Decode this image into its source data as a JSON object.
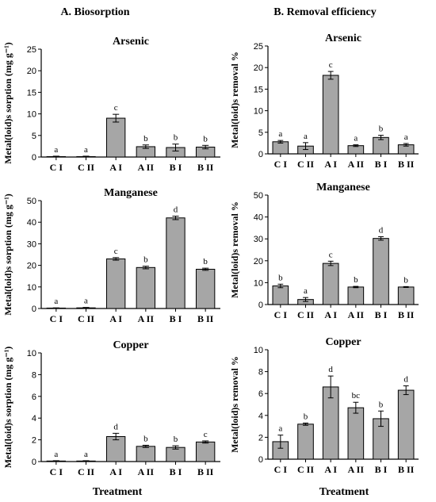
{
  "column_titles": [
    "A. Biosorption",
    "B. Removal efficiency"
  ],
  "x_axis_label": "Treatment",
  "style": {
    "bar_fill": "#a6a6a6",
    "bar_stroke": "#000000",
    "axis_color": "#000000"
  },
  "chart_data": [
    {
      "type": "bar",
      "column": 0,
      "row": 0,
      "title": "Arsenic",
      "ylabel": "Metal(loid)s sorption (mg g⁻¹)",
      "ylim": [
        0,
        25
      ],
      "yticks": [
        0,
        5,
        10,
        15,
        20,
        25
      ],
      "categories": [
        "C I",
        "C II",
        "A I",
        "A II",
        "B I",
        "B II"
      ],
      "values": [
        0.1,
        0.1,
        9.0,
        2.4,
        2.2,
        2.3
      ],
      "errors": [
        0.1,
        0.1,
        0.9,
        0.4,
        0.8,
        0.4
      ],
      "letters": [
        "a",
        "a",
        "c",
        "b",
        "b",
        "b"
      ]
    },
    {
      "type": "bar",
      "column": 1,
      "row": 0,
      "title": "Arsenic",
      "ylabel": "Metal(loid)s removal %",
      "ylim": [
        0,
        25
      ],
      "yticks": [
        0,
        5,
        10,
        15,
        20,
        25
      ],
      "categories": [
        "C I",
        "C II",
        "A I",
        "A II",
        "B I",
        "B II"
      ],
      "values": [
        2.8,
        1.8,
        18.2,
        1.9,
        3.8,
        2.1
      ],
      "errors": [
        0.3,
        0.8,
        0.9,
        0.2,
        0.5,
        0.3
      ],
      "letters": [
        "a",
        "a",
        "c",
        "a",
        "b",
        "a"
      ]
    },
    {
      "type": "bar",
      "column": 0,
      "row": 1,
      "title": "Manganese",
      "ylabel": "Metal(loid)s sorption (mg g⁻¹)",
      "ylim": [
        0,
        50
      ],
      "yticks": [
        0,
        10,
        20,
        30,
        40,
        50
      ],
      "categories": [
        "C I",
        "C II",
        "A I",
        "A II",
        "B I",
        "B II"
      ],
      "values": [
        0.2,
        0.3,
        23.0,
        19.0,
        42.0,
        18.2
      ],
      "errors": [
        0.1,
        0.2,
        0.6,
        0.6,
        0.8,
        0.5
      ],
      "letters": [
        "a",
        "a",
        "c",
        "b",
        "d",
        "b"
      ]
    },
    {
      "type": "bar",
      "column": 1,
      "row": 1,
      "title": "Manganese",
      "ylabel": "Metal(loid)s removal %",
      "ylim": [
        0,
        50
      ],
      "yticks": [
        0,
        10,
        20,
        30,
        40,
        50
      ],
      "categories": [
        "C I",
        "C II",
        "A I",
        "A II",
        "B I",
        "B II"
      ],
      "values": [
        8.5,
        2.3,
        18.8,
        8.0,
        30.2,
        8.0
      ],
      "errors": [
        0.8,
        0.9,
        1.0,
        0.3,
        0.8,
        0.2
      ],
      "letters": [
        "b",
        "a",
        "c",
        "b",
        "d",
        "b"
      ]
    },
    {
      "type": "bar",
      "column": 0,
      "row": 2,
      "title": "Copper",
      "ylabel": "Metal(loid)s sorption (mg g⁻¹)",
      "ylim": [
        0,
        10
      ],
      "yticks": [
        0,
        2,
        4,
        6,
        8,
        10
      ],
      "categories": [
        "C I",
        "C II",
        "A I",
        "A II",
        "B I",
        "B II"
      ],
      "values": [
        0.05,
        0.05,
        2.3,
        1.4,
        1.3,
        1.8
      ],
      "errors": [
        0.03,
        0.03,
        0.3,
        0.1,
        0.15,
        0.1
      ],
      "letters": [
        "a",
        "a",
        "d",
        "b",
        "b",
        "c"
      ]
    },
    {
      "type": "bar",
      "column": 1,
      "row": 2,
      "title": "Copper",
      "ylabel": "Metal(loid)s removal %",
      "ylim": [
        0,
        10
      ],
      "yticks": [
        0,
        2,
        4,
        6,
        8,
        10
      ],
      "categories": [
        "C I",
        "C II",
        "A I",
        "A II",
        "B I",
        "B II"
      ],
      "values": [
        1.6,
        3.2,
        6.6,
        4.7,
        3.7,
        6.3
      ],
      "errors": [
        0.6,
        0.1,
        1.0,
        0.5,
        0.7,
        0.4
      ],
      "letters": [
        "a",
        "b",
        "d",
        "bc",
        "b",
        "d"
      ]
    }
  ]
}
